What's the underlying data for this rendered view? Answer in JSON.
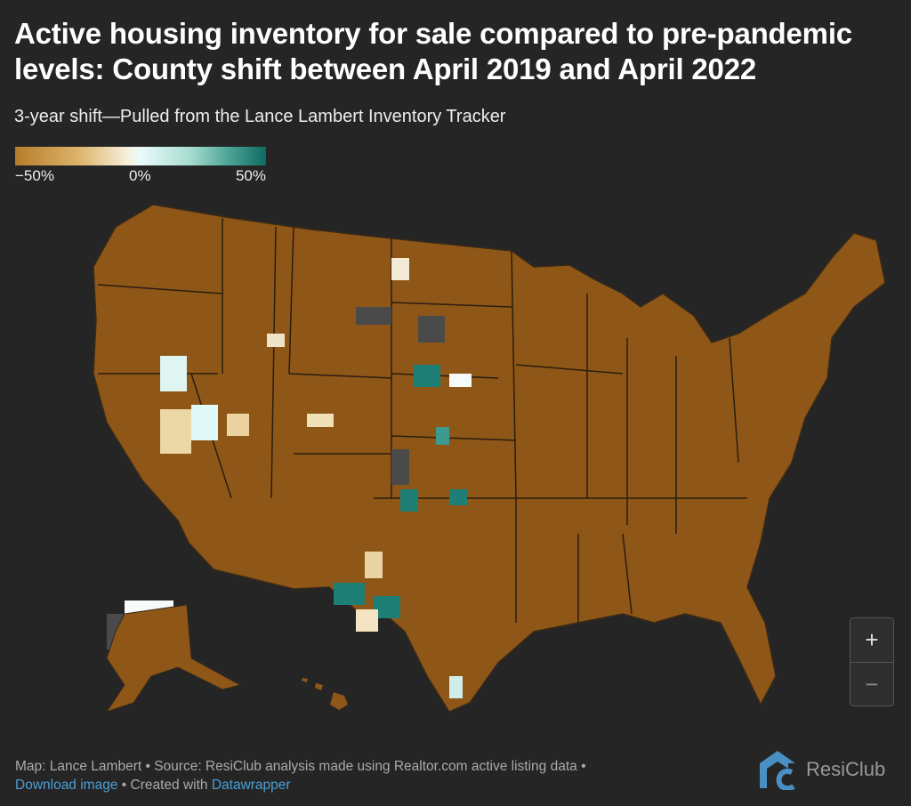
{
  "title": "Active housing inventory for sale compared to pre-pandemic levels: County shift between April 2019 and April 2022",
  "subtitle": "3-year shift—Pulled from the Lance Lambert Inventory Tracker",
  "legend": {
    "min_label": "−50%",
    "mid_label": "0%",
    "max_label": "50%",
    "colors": {
      "low": "#b57c2a",
      "mid": "#e9fbfb",
      "high": "#0f6a64",
      "no_data": "#4a4a4a"
    }
  },
  "zoom": {
    "in_label": "+",
    "out_label": "−"
  },
  "footer": {
    "line1": "Map: Lance Lambert • Source: ResiClub analysis made using Realtor.com active listing data •",
    "download_label": "Download image",
    "created_with": " • Created with ",
    "datawrapper_label": "Datawrapper"
  },
  "logo": {
    "text": "ResiClub",
    "mark": "RC"
  }
}
